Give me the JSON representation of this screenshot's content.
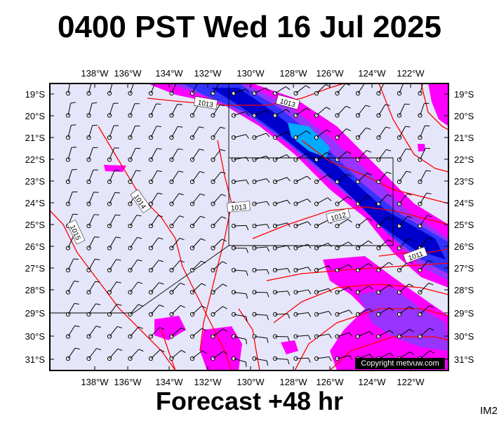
{
  "title": "0400 PST Wed 16 Jul 2025",
  "footer": "Forecast +48 hr",
  "image_code": "IM2",
  "copyright": "Copyright metvuw.com",
  "map": {
    "lon_labels": [
      "138°W",
      "136°W",
      "134°W",
      "132°W",
      "130°W",
      "128°W",
      "126°W",
      "124°W",
      "122°W"
    ],
    "lat_labels": [
      "19°S",
      "20°S",
      "21°S",
      "22°S",
      "23°S",
      "24°S",
      "25°S",
      "26°S",
      "27°S",
      "28°S",
      "29°S",
      "30°S",
      "31°S"
    ],
    "isobar_labels": [
      "1013",
      "1013",
      "1014",
      "1015",
      "1013",
      "1012",
      "1011"
    ],
    "colors": {
      "background": "#e6e6fa",
      "isobar": "#ff0000",
      "rain_light": "#ff00ff",
      "rain_moderate": "#9933ff",
      "rain_heavy": "#3333ff",
      "rain_very_heavy": "#0000cc",
      "rain_extreme": "#00aaff"
    }
  }
}
